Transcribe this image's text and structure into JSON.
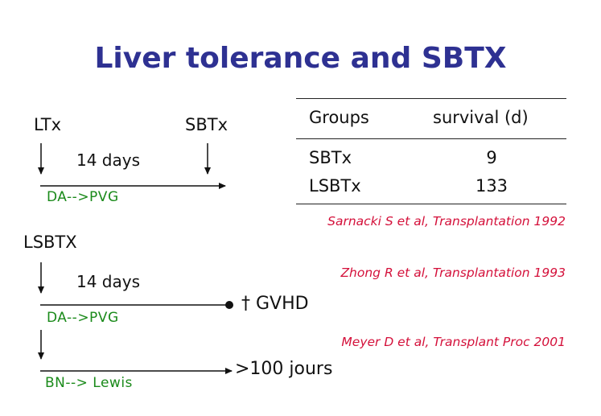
{
  "title": "Liver tolerance and SBTX",
  "diagram_top": {
    "label_ltx": "LTx",
    "label_sbtx": "SBTx",
    "interval": "14 days",
    "strain": "DA-->PVG"
  },
  "table": {
    "headers": [
      "Groups",
      "survival (d)"
    ],
    "rows": [
      {
        "group": "SBTx",
        "survival": "9"
      },
      {
        "group": "LSBTx",
        "survival": "133"
      }
    ]
  },
  "references": [
    "Sarnacki S et al, Transplantation 1992",
    "Zhong R et al, Transplantation 1993",
    "Meyer D et al, Transplant Proc 2001"
  ],
  "diagram_bottom": {
    "label": "LSBTX",
    "interval": "14 days",
    "strain_1": "DA-->PVG",
    "outcome_1": "† GVHD",
    "strain_2": "BN--> Lewis",
    "outcome_2": ">100 jours"
  },
  "colors": {
    "title": "#2e3192",
    "strain_text": "#1a8a1a",
    "reference_text": "#d4103a"
  }
}
